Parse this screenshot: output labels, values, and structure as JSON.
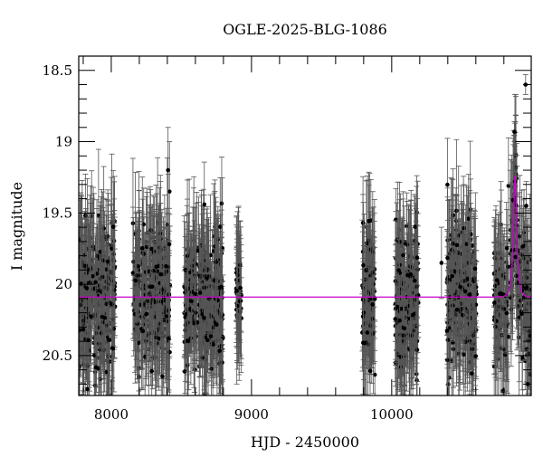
{
  "chart_data": {
    "type": "scatter",
    "title": "OGLE-2025-BLG-1086",
    "xlabel": "HJD - 2450000",
    "ylabel": "I magnitude",
    "xlim": [
      7768,
      10995
    ],
    "ylim": [
      20.78,
      18.4
    ],
    "y_inverted": true,
    "x_ticks": [
      8000,
      9000,
      10000
    ],
    "x_tick_labels": [
      "8000",
      "9000",
      "10000"
    ],
    "y_ticks": [
      18.5,
      19,
      19.5,
      20,
      20.5
    ],
    "y_tick_labels": [
      "18.5",
      "19",
      "19.5",
      "20",
      "20.5"
    ],
    "grid": false,
    "colors": {
      "points": "#000000",
      "errorbars": "#555555",
      "model": "#cc00cc"
    },
    "observing_seasons": [
      {
        "start": 7770,
        "end": 8030,
        "mean_mag": 20.1,
        "scatter": 0.3,
        "n": 260
      },
      {
        "start": 8150,
        "end": 8420,
        "mean_mag": 20.05,
        "scatter": 0.28,
        "n": 260
      },
      {
        "start": 8520,
        "end": 8800,
        "mean_mag": 20.1,
        "scatter": 0.3,
        "n": 260
      },
      {
        "start": 8890,
        "end": 8930,
        "mean_mag": 20.1,
        "scatter": 0.2,
        "n": 40
      },
      {
        "start": 9790,
        "end": 9880,
        "mean_mag": 20.1,
        "scatter": 0.28,
        "n": 80
      },
      {
        "start": 10025,
        "end": 10190,
        "mean_mag": 20.1,
        "scatter": 0.3,
        "n": 180
      },
      {
        "start": 10390,
        "end": 10610,
        "mean_mag": 20.1,
        "scatter": 0.3,
        "n": 220
      },
      {
        "start": 10730,
        "end": 10990,
        "mean_mag": 20.1,
        "scatter": 0.3,
        "n": 220
      }
    ],
    "notable_points": [
      {
        "x": 8415,
        "y": 19.35,
        "err": 0.35
      },
      {
        "x": 8405,
        "y": 19.2,
        "err": 0.3
      },
      {
        "x": 10355,
        "y": 19.85,
        "err": 0.25
      },
      {
        "x": 10880,
        "y": 19.28,
        "err": 0.1
      },
      {
        "x": 10875,
        "y": 18.93,
        "err": 0.07
      },
      {
        "x": 10955,
        "y": 18.6,
        "err": 0.07
      },
      {
        "x": 10960,
        "y": 19.45,
        "err": 0.17
      }
    ],
    "model": {
      "name": "",
      "baseline_mag": 20.09,
      "t0": 10880,
      "u0": 0.5,
      "tE": 20
    }
  }
}
